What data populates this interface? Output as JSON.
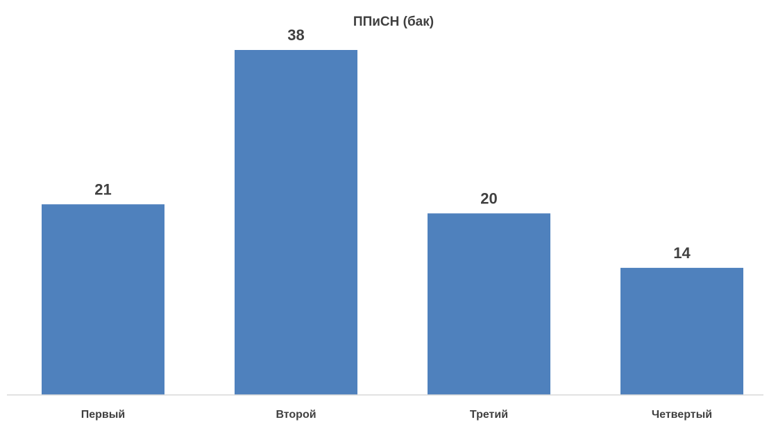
{
  "chart_data": {
    "type": "bar",
    "title": "ППиСН (бак)",
    "categories": [
      "Первый",
      "Второй",
      "Третий",
      "Четвертый"
    ],
    "values": [
      21,
      38,
      20,
      14
    ],
    "ylim": [
      0,
      40
    ],
    "bar_color": "#4f81bd",
    "grid": false,
    "data_labels": true
  }
}
